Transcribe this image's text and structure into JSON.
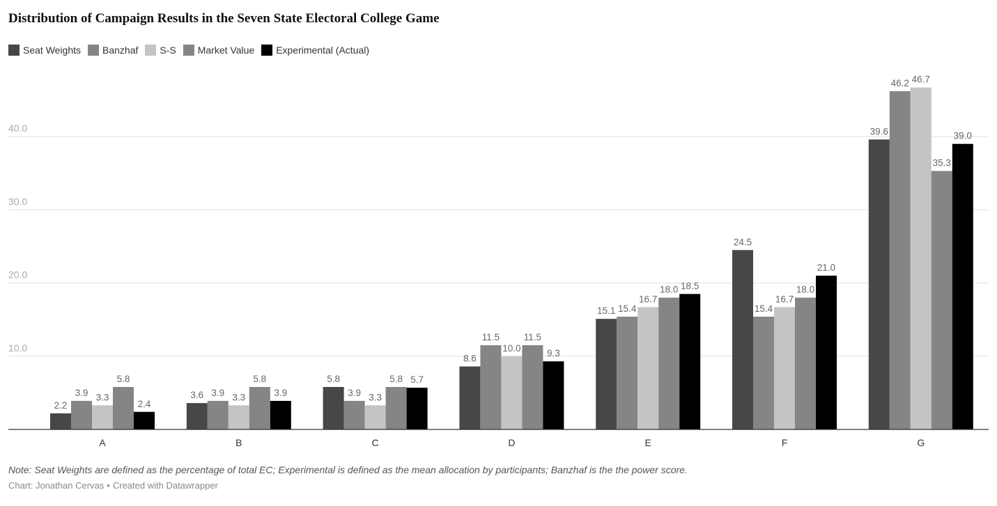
{
  "chart_data": {
    "type": "bar",
    "title": "Distribution of Campaign Results in the Seven State Electoral College Game",
    "categories": [
      "A",
      "B",
      "C",
      "D",
      "E",
      "F",
      "G"
    ],
    "series": [
      {
        "name": "Seat Weights",
        "color": "#474747",
        "values": [
          2.2,
          3.6,
          5.8,
          8.6,
          15.1,
          24.5,
          39.6
        ],
        "labels": [
          "2.2",
          "3.6",
          "5.8",
          "8.6",
          "15.1",
          "24.5",
          "39.6"
        ]
      },
      {
        "name": "Banzhaf",
        "color": "#858585",
        "values": [
          3.9,
          3.9,
          3.9,
          11.5,
          15.4,
          15.4,
          46.2
        ],
        "labels": [
          "3.9",
          "3.9",
          "3.9",
          "11.5",
          "15.4",
          "15.4",
          "46.2"
        ]
      },
      {
        "name": "S-S",
        "color": "#c4c4c4",
        "values": [
          3.3,
          3.3,
          3.3,
          10.0,
          16.7,
          16.7,
          46.7
        ],
        "labels": [
          "3.3",
          "3.3",
          "3.3",
          "10.0",
          "16.7",
          "16.7",
          "46.7"
        ]
      },
      {
        "name": "Market Value",
        "color": "#858585",
        "values": [
          5.8,
          5.8,
          5.8,
          11.5,
          18.0,
          18.0,
          35.3
        ],
        "labels": [
          "5.8",
          "5.8",
          "5.8",
          "11.5",
          "18.0",
          "18.0",
          "35.3"
        ]
      },
      {
        "name": "Experimental (Actual)",
        "color": "#000000",
        "values": [
          2.4,
          3.9,
          5.7,
          9.3,
          18.5,
          21.0,
          39.0
        ],
        "labels": [
          "2.4",
          "3.9",
          "5.7",
          "9.3",
          "18.5",
          "21.0",
          "39.0"
        ]
      }
    ],
    "yticks": [
      10,
      20,
      30,
      40
    ],
    "ytick_labels": [
      "10.0",
      "20.0",
      "30.0",
      "40.0"
    ],
    "ylim": [
      0,
      48
    ],
    "grid": true,
    "legend": "top-left"
  },
  "note": "Note: Seat Weights are defined as the percentage of total EC; Experimental is defined as the mean allocation by participants; Banzhaf is the the power score.",
  "credit": {
    "author": "Chart: Jonathan Cervas",
    "separator": "•",
    "tool": "Created with Datawrapper"
  },
  "colors": {
    "grid": "#e0e0e0",
    "axis": "#333333",
    "tick_label": "#aaaaaa",
    "value_label": "#666666"
  }
}
